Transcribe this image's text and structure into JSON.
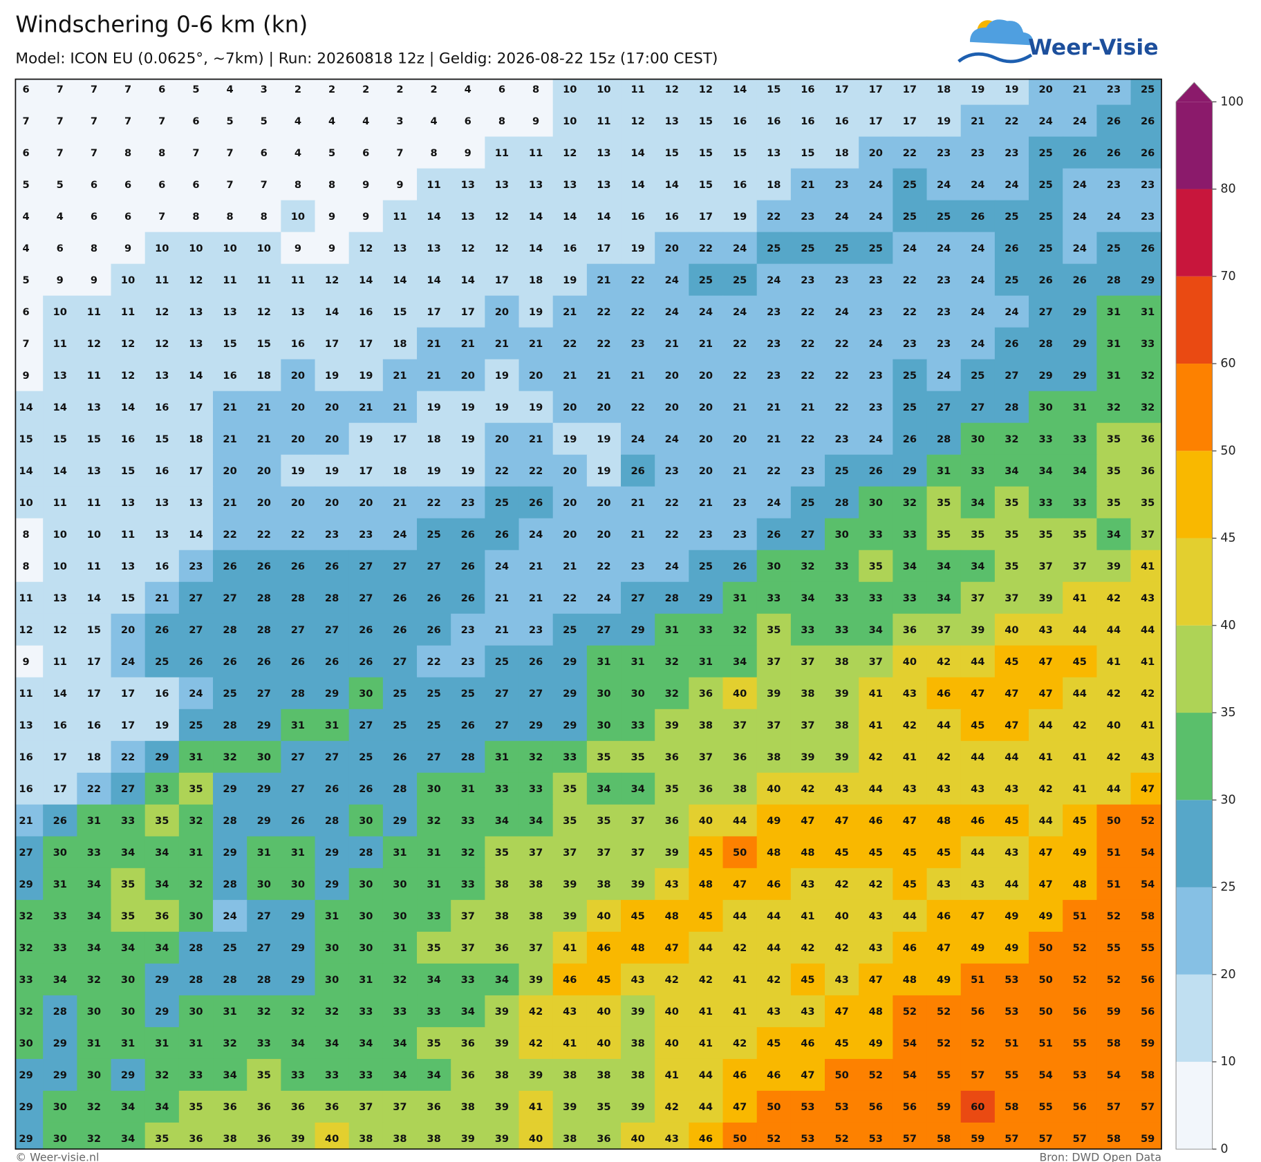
{
  "chart_data": {
    "type": "heatmap",
    "title": "Windschering 0-6 km (kn)",
    "subtitle": "Model: ICON EU (0.0625°, ~7km)  |  Run: 20260818 12z  |  Geldig: 2026-08-22 15z (17:00 CEST)",
    "logo": "Weer-Visie",
    "credit": "© Weer-visie.nl",
    "source": "Bron: DWD Open Data",
    "colorbar": {
      "levels": [
        0,
        10,
        20,
        25,
        30,
        35,
        40,
        45,
        50,
        60,
        70,
        80,
        100
      ],
      "colors": [
        "#f2f6fb",
        "#c0dff1",
        "#86c0e4",
        "#56a7c9",
        "#5abf6b",
        "#aed356",
        "#e3cf2f",
        "#f9b800",
        "#fd8100",
        "#ea4a12",
        "#c8163c",
        "#8b1a6b"
      ]
    },
    "values": [
      [
        6,
        7,
        7,
        7,
        6,
        5,
        4,
        3,
        2,
        2,
        2,
        2,
        2,
        4,
        6,
        8,
        10,
        10,
        11,
        12,
        12,
        14,
        15,
        16,
        17,
        17,
        17,
        18,
        19,
        19,
        20,
        21,
        23,
        25
      ],
      [
        7,
        7,
        7,
        7,
        7,
        6,
        5,
        5,
        4,
        4,
        4,
        3,
        4,
        6,
        8,
        9,
        10,
        11,
        12,
        13,
        15,
        16,
        16,
        16,
        16,
        17,
        17,
        19,
        21,
        22,
        24,
        24,
        26,
        26
      ],
      [
        6,
        7,
        7,
        8,
        8,
        7,
        7,
        6,
        4,
        5,
        6,
        7,
        8,
        9,
        11,
        11,
        12,
        13,
        14,
        15,
        15,
        15,
        13,
        15,
        18,
        20,
        22,
        23,
        23,
        23,
        25,
        26,
        26,
        26
      ],
      [
        5,
        5,
        6,
        6,
        6,
        6,
        7,
        7,
        8,
        8,
        9,
        9,
        11,
        13,
        13,
        13,
        13,
        13,
        14,
        14,
        15,
        16,
        18,
        21,
        23,
        24,
        25,
        24,
        24,
        24,
        25,
        24,
        23,
        23
      ],
      [
        4,
        4,
        6,
        6,
        7,
        8,
        8,
        8,
        10,
        9,
        9,
        11,
        14,
        13,
        12,
        14,
        14,
        14,
        16,
        16,
        17,
        19,
        22,
        23,
        24,
        24,
        25,
        25,
        26,
        25,
        25,
        24,
        24,
        23
      ],
      [
        4,
        6,
        8,
        9,
        10,
        10,
        10,
        10,
        9,
        9,
        12,
        13,
        13,
        12,
        12,
        14,
        16,
        17,
        19,
        20,
        22,
        24,
        25,
        25,
        25,
        25,
        24,
        24,
        24,
        26,
        25,
        24,
        25,
        26
      ],
      [
        5,
        9,
        9,
        10,
        11,
        12,
        11,
        11,
        11,
        12,
        14,
        14,
        14,
        14,
        17,
        18,
        19,
        21,
        22,
        24,
        25,
        25,
        24,
        23,
        23,
        23,
        22,
        23,
        24,
        25,
        26,
        26,
        28,
        29
      ],
      [
        6,
        10,
        11,
        11,
        12,
        13,
        13,
        12,
        13,
        14,
        16,
        15,
        17,
        17,
        20,
        19,
        21,
        22,
        22,
        24,
        24,
        24,
        23,
        22,
        24,
        23,
        22,
        23,
        24,
        24,
        27,
        29,
        31,
        31
      ],
      [
        7,
        11,
        12,
        12,
        12,
        13,
        15,
        15,
        16,
        17,
        17,
        18,
        21,
        21,
        21,
        21,
        22,
        22,
        23,
        21,
        21,
        22,
        23,
        22,
        22,
        24,
        23,
        23,
        24,
        26,
        28,
        29,
        31,
        33
      ],
      [
        9,
        13,
        11,
        12,
        13,
        14,
        16,
        18,
        20,
        19,
        19,
        21,
        21,
        20,
        19,
        20,
        21,
        21,
        21,
        20,
        20,
        22,
        23,
        22,
        22,
        23,
        25,
        24,
        25,
        27,
        29,
        29,
        31,
        32
      ],
      [
        14,
        14,
        13,
        14,
        16,
        17,
        21,
        21,
        20,
        20,
        21,
        21,
        19,
        19,
        19,
        19,
        20,
        20,
        22,
        20,
        20,
        21,
        21,
        21,
        22,
        23,
        25,
        27,
        27,
        28,
        30,
        31,
        32,
        32
      ],
      [
        15,
        15,
        15,
        16,
        15,
        18,
        21,
        21,
        20,
        20,
        19,
        17,
        18,
        19,
        20,
        21,
        19,
        19,
        24,
        24,
        20,
        20,
        21,
        22,
        23,
        24,
        26,
        28,
        30,
        32,
        33,
        33,
        35,
        36
      ],
      [
        14,
        14,
        13,
        15,
        16,
        17,
        20,
        20,
        19,
        19,
        17,
        18,
        19,
        19,
        22,
        22,
        20,
        19,
        26,
        23,
        20,
        21,
        22,
        23,
        25,
        26,
        29,
        31,
        33,
        34,
        34,
        34,
        35,
        36
      ],
      [
        10,
        11,
        11,
        13,
        13,
        13,
        21,
        20,
        20,
        20,
        20,
        21,
        22,
        23,
        25,
        26,
        20,
        20,
        21,
        22,
        21,
        23,
        24,
        25,
        28,
        30,
        32,
        35,
        34,
        35,
        33,
        33,
        35,
        35
      ],
      [
        8,
        10,
        10,
        11,
        13,
        14,
        22,
        22,
        22,
        23,
        23,
        24,
        25,
        26,
        26,
        24,
        20,
        20,
        21,
        22,
        23,
        23,
        26,
        27,
        30,
        33,
        33,
        35,
        35,
        35,
        35,
        35,
        34,
        37
      ],
      [
        8,
        10,
        11,
        13,
        16,
        23,
        26,
        26,
        26,
        26,
        27,
        27,
        27,
        26,
        24,
        21,
        21,
        22,
        23,
        24,
        25,
        26,
        30,
        32,
        33,
        35,
        34,
        34,
        34,
        35,
        37,
        37,
        39,
        41
      ],
      [
        11,
        13,
        14,
        15,
        21,
        27,
        27,
        28,
        28,
        28,
        27,
        26,
        26,
        26,
        21,
        21,
        22,
        24,
        27,
        28,
        29,
        31,
        33,
        34,
        33,
        33,
        33,
        34,
        37,
        37,
        39,
        41,
        42,
        43
      ],
      [
        12,
        12,
        15,
        20,
        26,
        27,
        28,
        28,
        27,
        27,
        26,
        26,
        26,
        23,
        21,
        23,
        25,
        27,
        29,
        31,
        33,
        32,
        35,
        33,
        33,
        34,
        36,
        37,
        39,
        40,
        43,
        44,
        44,
        44
      ],
      [
        9,
        11,
        17,
        24,
        25,
        26,
        26,
        26,
        26,
        26,
        26,
        27,
        22,
        23,
        25,
        26,
        29,
        31,
        31,
        32,
        31,
        34,
        37,
        37,
        38,
        37,
        40,
        42,
        44,
        45,
        47,
        45,
        41,
        41
      ],
      [
        11,
        14,
        17,
        17,
        16,
        24,
        25,
        27,
        28,
        29,
        30,
        25,
        25,
        25,
        27,
        27,
        29,
        30,
        30,
        32,
        36,
        40,
        39,
        38,
        39,
        41,
        43,
        46,
        47,
        47,
        47,
        44,
        42,
        42
      ],
      [
        13,
        16,
        16,
        17,
        19,
        25,
        28,
        29,
        31,
        31,
        27,
        25,
        25,
        26,
        27,
        29,
        29,
        30,
        33,
        39,
        38,
        37,
        37,
        37,
        38,
        41,
        42,
        44,
        45,
        47,
        44,
        42,
        40,
        41
      ],
      [
        16,
        17,
        18,
        22,
        29,
        31,
        32,
        30,
        27,
        27,
        25,
        26,
        27,
        28,
        31,
        32,
        33,
        35,
        35,
        36,
        37,
        36,
        38,
        39,
        39,
        42,
        41,
        42,
        44,
        44,
        41,
        41,
        42,
        43
      ],
      [
        16,
        17,
        22,
        27,
        33,
        35,
        29,
        29,
        27,
        26,
        26,
        28,
        30,
        31,
        33,
        33,
        35,
        34,
        34,
        35,
        36,
        38,
        40,
        42,
        43,
        44,
        43,
        43,
        43,
        43,
        42,
        41,
        44,
        47
      ],
      [
        21,
        26,
        31,
        33,
        35,
        32,
        28,
        29,
        26,
        28,
        30,
        29,
        32,
        33,
        34,
        34,
        35,
        35,
        37,
        36,
        40,
        44,
        49,
        47,
        47,
        46,
        47,
        48,
        46,
        45,
        44,
        45,
        50,
        52
      ],
      [
        27,
        30,
        33,
        34,
        34,
        31,
        29,
        31,
        31,
        29,
        28,
        31,
        31,
        32,
        35,
        37,
        37,
        37,
        37,
        39,
        45,
        50,
        48,
        48,
        45,
        45,
        45,
        45,
        44,
        43,
        47,
        49,
        51,
        54
      ],
      [
        29,
        31,
        34,
        35,
        34,
        32,
        28,
        30,
        30,
        29,
        30,
        30,
        31,
        33,
        38,
        38,
        39,
        38,
        39,
        43,
        48,
        47,
        46,
        43,
        42,
        42,
        45,
        43,
        43,
        44,
        47,
        48,
        51,
        54
      ],
      [
        32,
        33,
        34,
        35,
        36,
        30,
        24,
        27,
        29,
        31,
        30,
        30,
        33,
        37,
        38,
        38,
        39,
        40,
        45,
        48,
        45,
        44,
        44,
        41,
        40,
        43,
        44,
        46,
        47,
        49,
        49,
        51,
        52,
        58
      ],
      [
        32,
        33,
        34,
        34,
        34,
        28,
        25,
        27,
        29,
        30,
        30,
        31,
        35,
        37,
        36,
        37,
        41,
        46,
        48,
        47,
        44,
        42,
        44,
        42,
        42,
        43,
        46,
        47,
        49,
        49,
        50,
        52,
        55,
        55
      ],
      [
        33,
        34,
        32,
        30,
        29,
        28,
        28,
        28,
        29,
        30,
        31,
        32,
        34,
        33,
        34,
        39,
        46,
        45,
        43,
        42,
        42,
        41,
        42,
        45,
        43,
        47,
        48,
        49,
        51,
        53,
        50,
        52,
        52,
        56
      ],
      [
        32,
        28,
        30,
        30,
        29,
        30,
        31,
        32,
        32,
        32,
        33,
        33,
        33,
        34,
        39,
        42,
        43,
        40,
        39,
        40,
        41,
        41,
        43,
        43,
        47,
        48,
        52,
        52,
        56,
        53,
        50,
        56,
        59,
        56
      ],
      [
        30,
        29,
        31,
        31,
        31,
        31,
        32,
        33,
        34,
        34,
        34,
        34,
        35,
        36,
        39,
        42,
        41,
        40,
        38,
        40,
        41,
        42,
        45,
        46,
        45,
        49,
        54,
        52,
        52,
        51,
        51,
        55,
        58,
        59
      ],
      [
        29,
        29,
        30,
        29,
        32,
        33,
        34,
        35,
        33,
        33,
        33,
        34,
        34,
        36,
        38,
        39,
        38,
        38,
        38,
        41,
        44,
        46,
        46,
        47,
        50,
        52,
        54,
        55,
        57,
        55,
        54,
        53,
        54,
        58
      ],
      [
        29,
        30,
        32,
        34,
        34,
        35,
        36,
        36,
        36,
        36,
        37,
        37,
        36,
        38,
        39,
        41,
        39,
        35,
        39,
        42,
        44,
        47,
        50,
        53,
        53,
        56,
        56,
        59,
        60,
        58,
        55,
        56,
        57,
        57
      ],
      [
        29,
        30,
        32,
        34,
        35,
        36,
        38,
        36,
        39,
        40,
        38,
        38,
        38,
        39,
        39,
        40,
        38,
        36,
        40,
        43,
        46,
        50,
        52,
        53,
        52,
        53,
        57,
        58,
        59,
        57,
        57,
        57,
        58,
        59
      ]
    ]
  }
}
